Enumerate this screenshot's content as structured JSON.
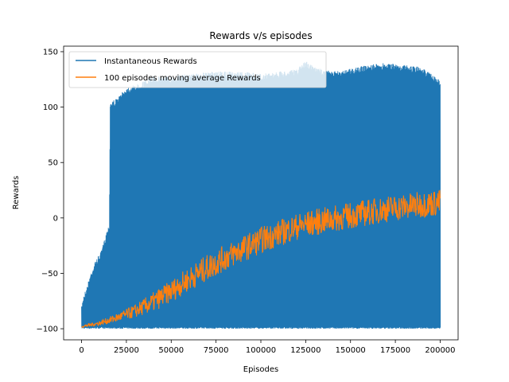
{
  "chart_data": {
    "type": "line",
    "title": "Rewards v/s episodes",
    "xlabel": "Episodes",
    "ylabel": "Rewards",
    "xlim": [
      -10000,
      210000
    ],
    "ylim": [
      -110,
      155
    ],
    "x_ticks": [
      0,
      25000,
      50000,
      75000,
      100000,
      125000,
      150000,
      175000,
      200000
    ],
    "x_tick_labels": [
      "0",
      "25000",
      "50000",
      "75000",
      "100000",
      "125000",
      "150000",
      "175000",
      "200000"
    ],
    "y_ticks": [
      -100,
      -50,
      0,
      50,
      100,
      150
    ],
    "y_tick_labels": [
      "−100",
      "−50",
      "0",
      "50",
      "100",
      "150"
    ],
    "grid": false,
    "legend_position": "top-left",
    "series": [
      {
        "name": "Instantaneous Rewards",
        "color": "#1f77b4",
        "style": "dense-envelope",
        "x": [
          0,
          1000,
          3000,
          5000,
          8000,
          11000,
          14000,
          15500,
          16000,
          20000,
          25000,
          30000,
          40000,
          50000,
          60000,
          75000,
          90000,
          100000,
          110000,
          120000,
          125000,
          130000,
          140000,
          150000,
          160000,
          170000,
          180000,
          190000,
          200000
        ],
        "upper": [
          -80,
          -70,
          -62,
          -50,
          -38,
          -30,
          -12,
          -5,
          105,
          108,
          118,
          120,
          128,
          128,
          130,
          132,
          132,
          130,
          132,
          134,
          142,
          136,
          132,
          135,
          138,
          140,
          138,
          136,
          124
        ],
        "lower": [
          -100,
          -100,
          -100,
          -100,
          -100,
          -100,
          -100,
          -100,
          -100,
          -100,
          -100,
          -100,
          -100,
          -100,
          -100,
          -100,
          -100,
          -100,
          -100,
          -100,
          -100,
          -100,
          -100,
          -100,
          -100,
          -100,
          -100,
          -100,
          -100
        ]
      },
      {
        "name": "100 episodes moving average Rewards",
        "color": "#ff7f0e",
        "style": "noisy-line",
        "x": [
          0,
          10000,
          20000,
          30000,
          40000,
          50000,
          60000,
          70000,
          80000,
          90000,
          100000,
          110000,
          120000,
          130000,
          140000,
          150000,
          160000,
          170000,
          180000,
          190000,
          200000
        ],
        "mean": [
          -98,
          -95,
          -90,
          -84,
          -76,
          -66,
          -55,
          -45,
          -36,
          -28,
          -20,
          -14,
          -8,
          -4,
          -1,
          2,
          5,
          8,
          10,
          12,
          14
        ],
        "spread": [
          1,
          2,
          4,
          6,
          9,
          10,
          11,
          12,
          12,
          12,
          12,
          12,
          12,
          12,
          12,
          12,
          12,
          12,
          12,
          12,
          12
        ]
      }
    ]
  }
}
